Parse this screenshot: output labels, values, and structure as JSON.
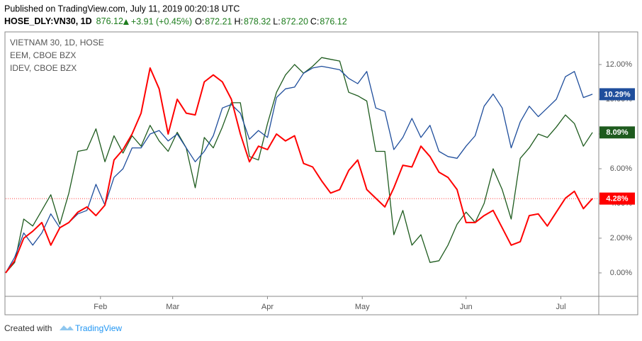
{
  "header": {
    "published": "Published on TradingView.com, July 11, 2019 00:20:18 UTC",
    "symbol": "HOSE_DLY:VN30, 1D",
    "last": "876.12",
    "change": "+3.91 (+0.45%)",
    "ohlc": [
      {
        "label": "O:",
        "value": "872.21"
      },
      {
        "label": "H:",
        "value": "878.32"
      },
      {
        "label": "L:",
        "value": "872.20"
      },
      {
        "label": "C:",
        "value": "876.12"
      }
    ]
  },
  "footer": {
    "created": "Created with",
    "brand": "TradingView"
  },
  "chart_data": {
    "type": "line",
    "x": [
      0,
      2,
      4,
      6,
      8,
      10,
      12,
      14,
      16,
      18,
      20,
      22,
      24,
      26,
      28,
      30,
      32,
      34,
      36,
      38,
      40,
      42,
      44,
      46,
      48,
      50,
      52,
      54,
      56,
      58,
      60,
      62,
      64,
      66,
      68,
      70,
      72,
      74,
      76,
      78,
      80,
      82,
      84,
      86,
      88,
      90,
      92,
      94,
      96,
      98,
      100,
      102,
      104,
      106,
      108,
      110,
      112,
      114,
      116,
      118,
      120,
      122,
      124,
      126,
      128,
      130
    ],
    "xlim": [
      0,
      131.4
    ],
    "xticks": [
      {
        "value": 21,
        "label": "Feb"
      },
      {
        "value": 37,
        "label": "Mar"
      },
      {
        "value": 58,
        "label": "Apr"
      },
      {
        "value": 79,
        "label": "May"
      },
      {
        "value": 102,
        "label": "Jun"
      },
      {
        "value": 123,
        "label": "Jul"
      }
    ],
    "ylim": [
      -1.35,
      13.88
    ],
    "yticks": [
      {
        "value": 0,
        "label": "0.00%"
      },
      {
        "value": 2,
        "label": "2.00%"
      },
      {
        "value": 4,
        "label": "4.00%"
      },
      {
        "value": 6,
        "label": "6.00%"
      },
      {
        "value": 8,
        "label": "8.00%"
      },
      {
        "value": 10,
        "label": "10.00%"
      },
      {
        "value": 12,
        "label": "12.00%"
      }
    ],
    "grid": false,
    "series": [
      {
        "name": "VIETNAM 30, 1D, HOSE",
        "color": "#ff0000",
        "last_label": "4.28%",
        "values": [
          0,
          0.7,
          2.0,
          2.4,
          2.9,
          1.6,
          2.6,
          2.9,
          3.5,
          3.8,
          3.3,
          3.9,
          6.5,
          7.1,
          8.0,
          9.2,
          11.8,
          10.6,
          8.0,
          10.0,
          9.2,
          9.1,
          11.0,
          11.4,
          11.0,
          10.0,
          8.0,
          6.4,
          7.3,
          7.1,
          8.0,
          7.6,
          7.9,
          6.3,
          6.1,
          5.3,
          4.6,
          4.8,
          5.9,
          6.5,
          4.8,
          4.3,
          3.8,
          4.9,
          6.2,
          6.1,
          7.3,
          6.7,
          5.8,
          5.5,
          4.8,
          2.9,
          2.9,
          3.3,
          3.6,
          2.6,
          1.6,
          1.8,
          3.3,
          3.4,
          2.7,
          3.5,
          4.3,
          4.7,
          3.7,
          4.28
        ]
      },
      {
        "name": "EEM, CBOE BZX",
        "color": "#1f4e9c",
        "last_label": "10.29%",
        "values": [
          0,
          0.9,
          2.3,
          1.6,
          2.3,
          3.4,
          2.6,
          2.9,
          3.4,
          3.6,
          5.1,
          3.9,
          5.5,
          6.0,
          7.2,
          7.2,
          8.0,
          8.2,
          7.6,
          8.0,
          7.2,
          6.4,
          7.0,
          7.9,
          9.5,
          9.7,
          9.2,
          7.7,
          8.2,
          7.8,
          10.1,
          10.6,
          10.7,
          11.5,
          11.8,
          11.9,
          11.8,
          11.7,
          11.2,
          10.9,
          11.6,
          9.5,
          9.3,
          7.1,
          7.8,
          8.9,
          7.8,
          8.5,
          7.0,
          6.7,
          6.6,
          7.3,
          7.9,
          9.6,
          10.3,
          9.5,
          7.2,
          8.7,
          9.6,
          9.0,
          9.5,
          10.0,
          11.3,
          11.6,
          10.1,
          10.29
        ]
      },
      {
        "name": "IDEV, CBOE BZX",
        "color": "#1e5b1e",
        "last_label": "8.09%",
        "values": [
          0,
          0.6,
          3.1,
          2.7,
          3.6,
          4.5,
          2.8,
          4.6,
          7.0,
          7.1,
          8.3,
          6.4,
          7.9,
          6.9,
          7.9,
          7.3,
          8.5,
          7.6,
          7.0,
          8.1,
          7.2,
          4.9,
          7.8,
          7.2,
          8.4,
          9.8,
          9.8,
          6.7,
          6.5,
          8.6,
          10.4,
          11.4,
          12.0,
          11.5,
          11.9,
          12.4,
          12.3,
          12.2,
          10.4,
          10.2,
          9.9,
          7.0,
          7.0,
          2.2,
          3.6,
          1.6,
          2.2,
          0.6,
          0.7,
          1.6,
          2.8,
          3.5,
          2.9,
          4.0,
          6.0,
          4.8,
          3.1,
          6.6,
          7.2,
          8.0,
          7.8,
          8.4,
          9.1,
          8.6,
          7.3,
          8.09
        ]
      }
    ]
  }
}
